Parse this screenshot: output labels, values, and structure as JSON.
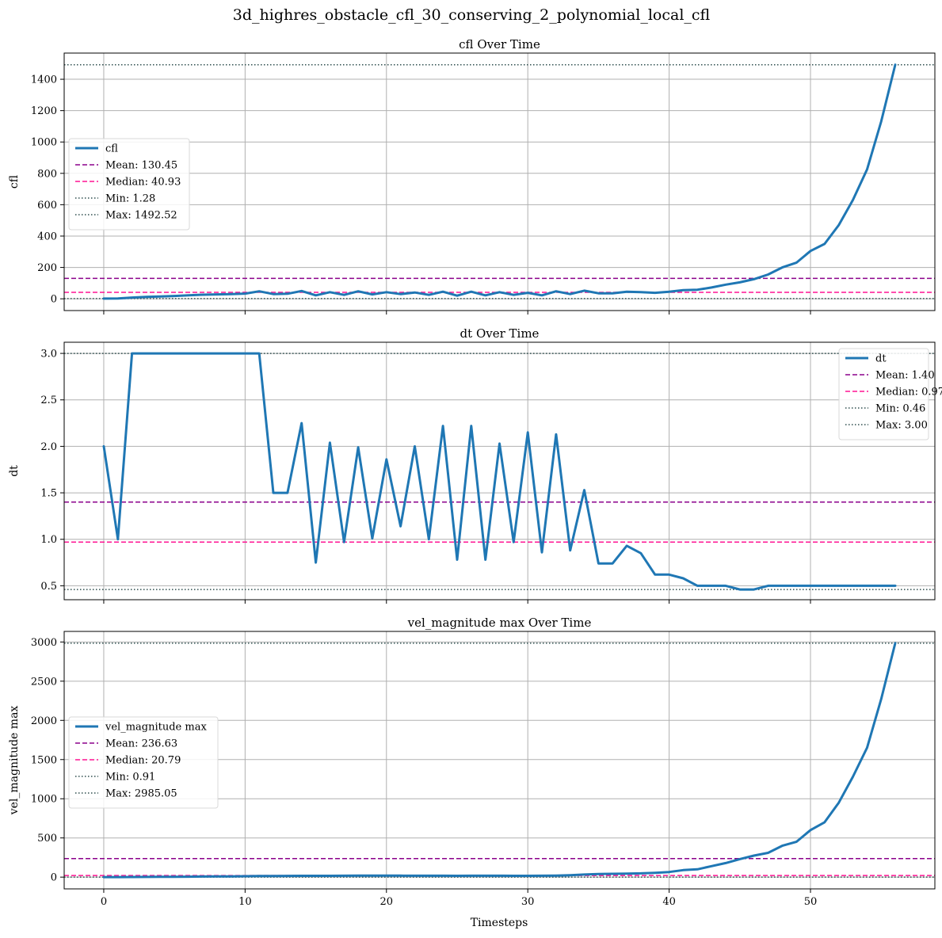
{
  "figure": {
    "suptitle": "3d_highres_obstacle_cfl_30_conserving_2_polynomial_local_cfl",
    "xlabel": "Timesteps"
  },
  "colors": {
    "line": "#1f77b4",
    "mean": "#8b008b",
    "median": "#ff1493",
    "minmax": "#2f4f4f",
    "grid": "#b0b0b0"
  },
  "chart_data": [
    {
      "type": "line",
      "title": "cfl Over Time",
      "xlabel": "",
      "ylabel": "cfl",
      "xlim": [
        -2.8,
        58.8
      ],
      "ylim": [
        -75,
        1567
      ],
      "xticks": [
        0,
        10,
        20,
        30,
        40,
        50
      ],
      "xticklabels_shown": false,
      "yticks": [
        0,
        200,
        400,
        600,
        800,
        1000,
        1200,
        1400
      ],
      "yticklabels": [
        "0",
        "200",
        "400",
        "600",
        "800",
        "1000",
        "1200",
        "1400"
      ],
      "grid": true,
      "legend_position": "center-left",
      "series": [
        {
          "name": "cfl",
          "x": [
            0,
            1,
            2,
            3,
            4,
            5,
            6,
            7,
            8,
            9,
            10,
            11,
            12,
            13,
            14,
            15,
            16,
            17,
            18,
            19,
            20,
            21,
            22,
            23,
            24,
            25,
            26,
            27,
            28,
            29,
            30,
            31,
            32,
            33,
            34,
            35,
            36,
            37,
            38,
            39,
            40,
            41,
            42,
            43,
            44,
            45,
            46,
            47,
            48,
            49,
            50,
            51,
            52,
            53,
            54,
            55,
            56
          ],
          "y": [
            1.28,
            2.5,
            8,
            12,
            15,
            18,
            22,
            26,
            28,
            30,
            33,
            48,
            30,
            32,
            50,
            22,
            42,
            25,
            48,
            28,
            42,
            30,
            40,
            25,
            45,
            20,
            45,
            22,
            42,
            25,
            38,
            22,
            48,
            30,
            52,
            35,
            35,
            45,
            42,
            38,
            45,
            55,
            58,
            72,
            90,
            105,
            125,
            155,
            200,
            230,
            305,
            350,
            470,
            630,
            825,
            1130,
            1492.52
          ]
        }
      ],
      "hlines": [
        {
          "kind": "mean",
          "label": "Mean: 130.45",
          "y": 130.45
        },
        {
          "kind": "median",
          "label": "Median: 40.93",
          "y": 40.93
        },
        {
          "kind": "min",
          "label": "Min: 1.28",
          "y": 1.28
        },
        {
          "kind": "max",
          "label": "Max: 1492.52",
          "y": 1492.52
        }
      ]
    },
    {
      "type": "line",
      "title": "dt Over Time",
      "xlabel": "",
      "ylabel": "dt",
      "xlim": [
        -2.8,
        58.8
      ],
      "ylim": [
        0.35,
        3.12
      ],
      "xticks": [
        0,
        10,
        20,
        30,
        40,
        50
      ],
      "xticklabels_shown": false,
      "yticks": [
        0.5,
        1.0,
        1.5,
        2.0,
        2.5,
        3.0
      ],
      "yticklabels": [
        "0.5",
        "1.0",
        "1.5",
        "2.0",
        "2.5",
        "3.0"
      ],
      "grid": true,
      "legend_position": "top-right",
      "series": [
        {
          "name": "dt",
          "x": [
            0,
            1,
            2,
            3,
            4,
            5,
            6,
            7,
            8,
            9,
            10,
            11,
            12,
            13,
            14,
            15,
            16,
            17,
            18,
            19,
            20,
            21,
            22,
            23,
            24,
            25,
            26,
            27,
            28,
            29,
            30,
            31,
            32,
            33,
            34,
            35,
            36,
            37,
            38,
            39,
            40,
            41,
            42,
            43,
            44,
            45,
            46,
            47,
            48,
            49,
            50,
            51,
            52,
            53,
            54,
            55,
            56
          ],
          "y": [
            2.0,
            1.0,
            3.0,
            3.0,
            3.0,
            3.0,
            3.0,
            3.0,
            3.0,
            3.0,
            3.0,
            3.0,
            1.5,
            1.5,
            2.25,
            0.75,
            2.04,
            0.97,
            1.99,
            1.01,
            1.86,
            1.14,
            2.0,
            1.0,
            2.22,
            0.78,
            2.22,
            0.78,
            2.03,
            0.97,
            2.15,
            0.86,
            2.13,
            0.88,
            1.53,
            0.74,
            0.74,
            0.93,
            0.85,
            0.62,
            0.62,
            0.58,
            0.5,
            0.5,
            0.5,
            0.46,
            0.46,
            0.5,
            0.5,
            0.5,
            0.5,
            0.5,
            0.5,
            0.5,
            0.5,
            0.5,
            0.5
          ]
        }
      ],
      "hlines": [
        {
          "kind": "mean",
          "label": "Mean: 1.40",
          "y": 1.4
        },
        {
          "kind": "median",
          "label": "Median: 0.97",
          "y": 0.97
        },
        {
          "kind": "min",
          "label": "Min: 0.46",
          "y": 0.46
        },
        {
          "kind": "max",
          "label": "Max: 3.00",
          "y": 3.0
        }
      ]
    },
    {
      "type": "line",
      "title": "vel_magnitude max Over Time",
      "xlabel": "Timesteps",
      "ylabel": "vel_magnitude max",
      "xlim": [
        -2.8,
        58.8
      ],
      "ylim": [
        -150,
        3135
      ],
      "xticks": [
        0,
        10,
        20,
        30,
        40,
        50
      ],
      "xticklabels_shown": true,
      "xticklabels": [
        "0",
        "10",
        "20",
        "30",
        "40",
        "50"
      ],
      "yticks": [
        0,
        500,
        1000,
        1500,
        2000,
        2500,
        3000
      ],
      "yticklabels": [
        "0",
        "500",
        "1000",
        "1500",
        "2000",
        "2500",
        "3000"
      ],
      "grid": true,
      "legend_position": "center-left",
      "series": [
        {
          "name": "vel_magnitude max",
          "x": [
            0,
            1,
            2,
            3,
            4,
            5,
            6,
            7,
            8,
            9,
            10,
            11,
            12,
            13,
            14,
            15,
            16,
            17,
            18,
            19,
            20,
            21,
            22,
            23,
            24,
            25,
            26,
            27,
            28,
            29,
            30,
            31,
            32,
            33,
            34,
            35,
            36,
            37,
            38,
            39,
            40,
            41,
            42,
            43,
            44,
            45,
            46,
            47,
            48,
            49,
            50,
            51,
            52,
            53,
            54,
            55,
            56
          ],
          "y": [
            0.91,
            1,
            2,
            3,
            4,
            5,
            6,
            8,
            9,
            10,
            12,
            14,
            15,
            16,
            17,
            17,
            17,
            18,
            19,
            19,
            19,
            19,
            18,
            18,
            18,
            17,
            18,
            18,
            18,
            17,
            17,
            18,
            20,
            25,
            33,
            40,
            42,
            45,
            48,
            55,
            65,
            90,
            100,
            140,
            180,
            230,
            275,
            310,
            400,
            450,
            600,
            700,
            950,
            1280,
            1650,
            2270,
            2985.05
          ]
        }
      ],
      "hlines": [
        {
          "kind": "mean",
          "label": "Mean: 236.63",
          "y": 236.63
        },
        {
          "kind": "median",
          "label": "Median: 20.79",
          "y": 20.79
        },
        {
          "kind": "min",
          "label": "Min: 0.91",
          "y": 0.91
        },
        {
          "kind": "max",
          "label": "Max: 2985.05",
          "y": 2985.05
        }
      ]
    }
  ]
}
